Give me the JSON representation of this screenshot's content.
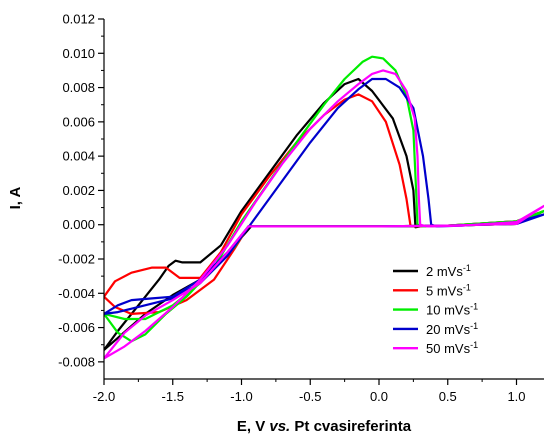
{
  "chart_data": {
    "type": "line",
    "xlabel": "E, V vs. Pt cvasireferinta",
    "xlabel_parts": [
      "E, V ",
      "vs.",
      " Pt cvasireferinta"
    ],
    "ylabel": "I, A",
    "xlim": [
      -2.0,
      1.2
    ],
    "ylim": [
      -0.009,
      0.012
    ],
    "x_ticks": [
      -2.0,
      -1.5,
      -1.0,
      -0.5,
      0.0,
      0.5,
      1.0
    ],
    "x_tick_labels": [
      "-2.0",
      "-1.5",
      "-1.0",
      "-0.5",
      "0.0",
      "0.5",
      "1.0"
    ],
    "y_ticks": [
      -0.008,
      -0.006,
      -0.004,
      -0.002,
      0.0,
      0.002,
      0.004,
      0.006,
      0.008,
      0.01,
      0.012
    ],
    "y_tick_labels": [
      "-0.008",
      "-0.006",
      "-0.004",
      "-0.002",
      "0.000",
      "0.002",
      "0.004",
      "0.006",
      "0.008",
      "0.010",
      "0.012"
    ],
    "legend_position": "bottom-right",
    "series": [
      {
        "name": "2 mVs-1",
        "label": "2 mVs",
        "sup": "-1",
        "color": "#000000",
        "points": [
          [
            -2.0,
            -0.0073
          ],
          [
            -1.9,
            -0.0062
          ],
          [
            -1.8,
            -0.0052
          ],
          [
            -1.7,
            -0.0042
          ],
          [
            -1.6,
            -0.0032
          ],
          [
            -1.53,
            -0.0024
          ],
          [
            -1.48,
            -0.0021
          ],
          [
            -1.43,
            -0.0022
          ],
          [
            -1.3,
            -0.0022
          ],
          [
            -1.15,
            -0.0012
          ],
          [
            -1.0,
            0.0008
          ],
          [
            -0.8,
            0.003
          ],
          [
            -0.6,
            0.0052
          ],
          [
            -0.4,
            0.0071
          ],
          [
            -0.25,
            0.0082
          ],
          [
            -0.15,
            0.0085
          ],
          [
            -0.05,
            0.0078
          ],
          [
            0.1,
            0.0062
          ],
          [
            0.2,
            0.004
          ],
          [
            0.25,
            0.002
          ],
          [
            0.265,
            -0.0001
          ],
          [
            0.265,
            -0.00015
          ],
          [
            0.3,
            -0.0001
          ],
          [
            0.5,
            -5e-05
          ],
          [
            1.0,
            0.0002
          ],
          [
            1.2,
            0.0008
          ],
          [
            1.0,
            5e-05
          ],
          [
            0.5,
            -5e-05
          ],
          [
            0.0,
            -0.0001
          ],
          [
            -0.5,
            -0.0001
          ],
          [
            -0.93,
            -0.0001
          ],
          [
            -1.05,
            -0.0012
          ],
          [
            -1.3,
            -0.0032
          ],
          [
            -1.5,
            -0.0041
          ],
          [
            -1.7,
            -0.0052
          ],
          [
            -1.9,
            -0.0066
          ],
          [
            -2.0,
            -0.0073
          ]
        ]
      },
      {
        "name": "5 mVs-1",
        "label": "5 mVs",
        "sup": "-1",
        "color": "#ff0000",
        "points": [
          [
            -2.0,
            -0.0042
          ],
          [
            -1.92,
            -0.0033
          ],
          [
            -1.8,
            -0.0028
          ],
          [
            -1.65,
            -0.0025
          ],
          [
            -1.55,
            -0.0025
          ],
          [
            -1.45,
            -0.0031
          ],
          [
            -1.3,
            -0.0031
          ],
          [
            -1.15,
            -0.0016
          ],
          [
            -1.0,
            0.0006
          ],
          [
            -0.8,
            0.0028
          ],
          [
            -0.6,
            0.0048
          ],
          [
            -0.4,
            0.0064
          ],
          [
            -0.25,
            0.0073
          ],
          [
            -0.15,
            0.0076
          ],
          [
            -0.05,
            0.0072
          ],
          [
            0.05,
            0.006
          ],
          [
            0.15,
            0.0035
          ],
          [
            0.2,
            0.0015
          ],
          [
            0.23,
            -0.0001
          ],
          [
            0.3,
            -0.0001
          ],
          [
            0.5,
            -5e-05
          ],
          [
            1.0,
            0.0002
          ],
          [
            1.2,
            0.0008
          ],
          [
            1.0,
            5e-05
          ],
          [
            0.5,
            -5e-05
          ],
          [
            0.0,
            -0.0001
          ],
          [
            -0.5,
            -0.0001
          ],
          [
            -0.95,
            -0.0001
          ],
          [
            -1.05,
            -0.0014
          ],
          [
            -1.2,
            -0.0032
          ],
          [
            -1.4,
            -0.0044
          ],
          [
            -1.6,
            -0.0051
          ],
          [
            -1.8,
            -0.0052
          ],
          [
            -1.92,
            -0.0048
          ],
          [
            -2.0,
            -0.0042
          ]
        ]
      },
      {
        "name": "10 mVs-1",
        "label": "10 mVs",
        "sup": "-1",
        "color": "#00ee00",
        "points": [
          [
            -2.0,
            -0.0052
          ],
          [
            -1.9,
            -0.0063
          ],
          [
            -1.8,
            -0.0068
          ],
          [
            -1.7,
            -0.0064
          ],
          [
            -1.55,
            -0.0052
          ],
          [
            -1.4,
            -0.0042
          ],
          [
            -1.2,
            -0.0025
          ],
          [
            -1.0,
            0.0002
          ],
          [
            -0.8,
            0.0025
          ],
          [
            -0.6,
            0.0048
          ],
          [
            -0.4,
            0.007
          ],
          [
            -0.25,
            0.0085
          ],
          [
            -0.12,
            0.0095
          ],
          [
            -0.05,
            0.0098
          ],
          [
            0.03,
            0.0097
          ],
          [
            0.12,
            0.009
          ],
          [
            0.2,
            0.0075
          ],
          [
            0.25,
            0.0055
          ],
          [
            0.27,
            0.002
          ],
          [
            0.28,
            0.0
          ],
          [
            0.32,
            -0.0001
          ],
          [
            0.5,
            -5e-05
          ],
          [
            1.0,
            0.0002
          ],
          [
            1.2,
            0.0008
          ],
          [
            1.0,
            5e-05
          ],
          [
            0.5,
            -5e-05
          ],
          [
            0.0,
            -0.0001
          ],
          [
            -0.5,
            -0.0001
          ],
          [
            -0.95,
            -0.0001
          ],
          [
            -1.05,
            -0.0013
          ],
          [
            -1.3,
            -0.0034
          ],
          [
            -1.5,
            -0.0047
          ],
          [
            -1.7,
            -0.0055
          ],
          [
            -1.85,
            -0.0055
          ],
          [
            -2.0,
            -0.0052
          ]
        ]
      },
      {
        "name": "20 mVs-1",
        "label": "20 mVs",
        "sup": "-1",
        "color": "#0000cc",
        "points": [
          [
            -2.0,
            -0.0052
          ],
          [
            -1.9,
            -0.0051
          ],
          [
            -1.8,
            -0.0049
          ],
          [
            -1.65,
            -0.0046
          ],
          [
            -1.5,
            -0.0043
          ],
          [
            -1.3,
            -0.0034
          ],
          [
            -1.1,
            -0.0018
          ],
          [
            -0.9,
            0.0004
          ],
          [
            -0.7,
            0.0026
          ],
          [
            -0.5,
            0.0048
          ],
          [
            -0.3,
            0.0068
          ],
          [
            -0.15,
            0.0079
          ],
          [
            -0.05,
            0.0085
          ],
          [
            0.05,
            0.0085
          ],
          [
            0.15,
            0.008
          ],
          [
            0.25,
            0.0068
          ],
          [
            0.32,
            0.004
          ],
          [
            0.36,
            0.0015
          ],
          [
            0.38,
            0.0
          ],
          [
            0.42,
            -0.0001
          ],
          [
            0.6,
            -5e-05
          ],
          [
            1.0,
            0.00015
          ],
          [
            1.2,
            0.0006
          ],
          [
            1.0,
            5e-05
          ],
          [
            0.5,
            -5e-05
          ],
          [
            0.0,
            -0.0001
          ],
          [
            -0.5,
            -0.0001
          ],
          [
            -0.95,
            -0.0001
          ],
          [
            -1.1,
            -0.0016
          ],
          [
            -1.3,
            -0.0032
          ],
          [
            -1.5,
            -0.0042
          ],
          [
            -1.65,
            -0.0043
          ],
          [
            -1.8,
            -0.0044
          ],
          [
            -1.9,
            -0.0047
          ],
          [
            -2.0,
            -0.0052
          ]
        ]
      },
      {
        "name": "50 mVs-1",
        "label": "50 mVs",
        "sup": "-1",
        "color": "#ff00ff",
        "points": [
          [
            -2.0,
            -0.0078
          ],
          [
            -1.85,
            -0.0071
          ],
          [
            -1.7,
            -0.0062
          ],
          [
            -1.5,
            -0.0048
          ],
          [
            -1.3,
            -0.0032
          ],
          [
            -1.1,
            -0.0012
          ],
          [
            -0.9,
            0.0013
          ],
          [
            -0.7,
            0.0036
          ],
          [
            -0.5,
            0.0056
          ],
          [
            -0.3,
            0.0072
          ],
          [
            -0.15,
            0.0082
          ],
          [
            -0.05,
            0.0088
          ],
          [
            0.03,
            0.009
          ],
          [
            0.12,
            0.0088
          ],
          [
            0.2,
            0.0078
          ],
          [
            0.26,
            0.0062
          ],
          [
            0.28,
            0.004
          ],
          [
            0.29,
            0.0015
          ],
          [
            0.3,
            0.0
          ],
          [
            0.35,
            -0.0001
          ],
          [
            0.6,
            -5e-05
          ],
          [
            1.0,
            0.00015
          ],
          [
            1.2,
            0.0011
          ],
          [
            1.0,
            5e-05
          ],
          [
            0.5,
            -5e-05
          ],
          [
            0.0,
            -0.0001
          ],
          [
            -0.5,
            -0.0001
          ],
          [
            -0.95,
            -0.0001
          ],
          [
            -1.1,
            -0.0016
          ],
          [
            -1.3,
            -0.0034
          ],
          [
            -1.5,
            -0.0044
          ],
          [
            -1.7,
            -0.0053
          ],
          [
            -1.85,
            -0.0063
          ],
          [
            -2.0,
            -0.0078
          ]
        ]
      }
    ]
  }
}
